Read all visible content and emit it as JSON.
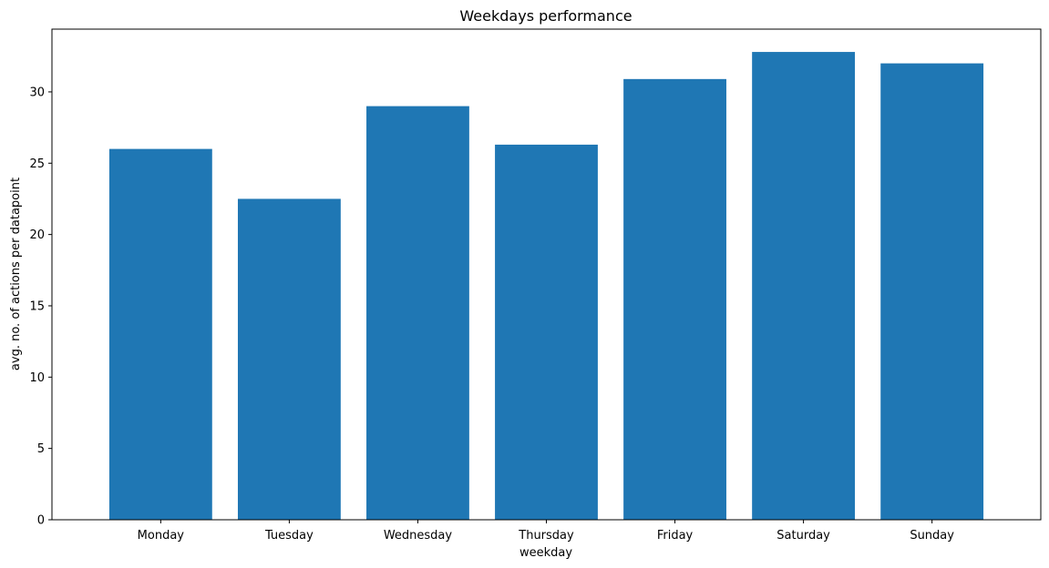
{
  "chart_data": {
    "type": "bar",
    "title": "Weekdays performance",
    "xlabel": "weekday",
    "ylabel": "avg. no. of actions per datapoint",
    "categories": [
      "Monday",
      "Tuesday",
      "Wednesday",
      "Thursday",
      "Friday",
      "Saturday",
      "Sunday"
    ],
    "values": [
      26.0,
      22.5,
      29.0,
      26.3,
      30.9,
      32.8,
      32.0
    ],
    "ylim": [
      0,
      34.4
    ],
    "yticks": [
      "0",
      "5",
      "10",
      "15",
      "20",
      "25",
      "30"
    ],
    "grid": false,
    "bar_color": "#1f77b4"
  }
}
